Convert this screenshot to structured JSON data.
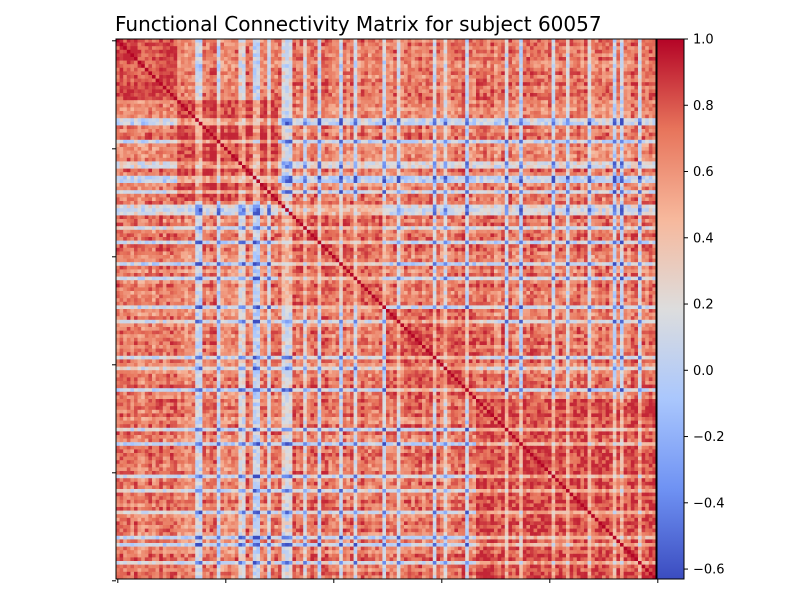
{
  "chart_data": {
    "type": "heatmap",
    "title": "Functional Connectivity Matrix for subject 60057",
    "xlabel": "",
    "ylabel": "",
    "matrix_size": 150,
    "diagonal_value": 1.0,
    "value_range": [
      -0.63,
      1.0
    ],
    "colormap": "coolwarm",
    "colormap_stops": [
      "#3b4cc0",
      "#6f92f3",
      "#aac7fd",
      "#dddddd",
      "#f7b89c",
      "#e7745b",
      "#b40426"
    ],
    "colorbar_ticks": [
      1.0,
      0.8,
      0.6,
      0.4,
      0.2,
      0.0,
      -0.2,
      -0.4,
      -0.6
    ],
    "colorbar_tick_labels": [
      "1.0",
      "0.8",
      "0.6",
      "0.4",
      "0.2",
      "0.0",
      "−0.2",
      "−0.4",
      "−0.6"
    ],
    "x_tick_count": 6,
    "y_tick_count": 6,
    "x_tick_labels_shown": false,
    "y_tick_labels_shown": false,
    "module_boundaries": [
      0,
      17,
      45,
      75,
      100,
      150
    ],
    "module_strength": [
      0.62,
      0.7,
      0.55,
      0.58,
      0.6
    ],
    "negative_nodes": [
      22,
      23,
      28,
      34,
      35,
      38,
      39,
      42,
      46,
      47,
      48,
      52,
      56,
      62,
      66,
      74,
      78,
      88,
      91,
      97,
      108,
      112,
      121,
      125,
      131,
      138,
      140,
      145
    ],
    "grid": false
  }
}
